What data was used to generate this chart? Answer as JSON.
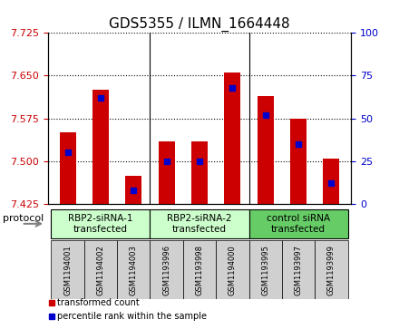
{
  "title": "GDS5355 / ILMN_1664448",
  "samples": [
    "GSM1194001",
    "GSM1194002",
    "GSM1194003",
    "GSM1193996",
    "GSM1193998",
    "GSM1194000",
    "GSM1193995",
    "GSM1193997",
    "GSM1193999"
  ],
  "transformed_counts": [
    7.55,
    7.625,
    7.475,
    7.535,
    7.535,
    7.655,
    7.615,
    7.575,
    7.505
  ],
  "percentile_ranks": [
    30,
    62,
    8,
    25,
    25,
    68,
    52,
    35,
    12
  ],
  "ylim_left": [
    7.425,
    7.725
  ],
  "ylim_right": [
    0,
    100
  ],
  "yticks_left": [
    7.425,
    7.5,
    7.575,
    7.65,
    7.725
  ],
  "yticks_right": [
    0,
    25,
    50,
    75,
    100
  ],
  "bar_color": "#cc0000",
  "dot_color": "#0000cc",
  "bar_width": 0.5,
  "groups": [
    {
      "label": "RBP2-siRNA-1\ntransfected",
      "indices": [
        0,
        1,
        2
      ],
      "color": "#ccffcc"
    },
    {
      "label": "RBP2-siRNA-2\ntransfected",
      "indices": [
        3,
        4,
        5
      ],
      "color": "#ccffcc"
    },
    {
      "label": "control siRNA\ntransfected",
      "indices": [
        6,
        7,
        8
      ],
      "color": "#66cc66"
    }
  ],
  "legend_items": [
    {
      "label": "transformed count",
      "color": "#cc0000",
      "marker": "s"
    },
    {
      "label": "percentile rank within the sample",
      "color": "#0000cc",
      "marker": "s"
    }
  ],
  "protocol_label": "protocol",
  "bg_color": "#ffffff",
  "plot_bg_color": "#ffffff",
  "grid_color": "#000000",
  "left_tick_color": "#cc0000",
  "right_tick_color": "#0000cc"
}
